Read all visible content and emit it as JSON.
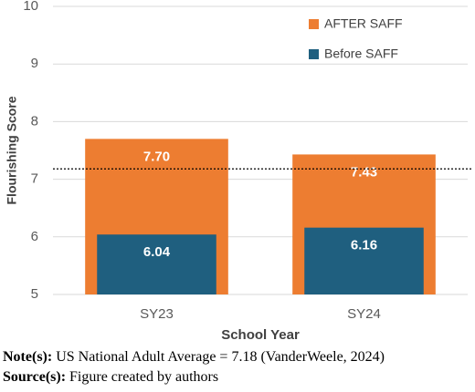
{
  "chart_data": {
    "type": "bar",
    "categories": [
      "SY23",
      "SY24"
    ],
    "series": [
      {
        "name": "AFTER SAFF",
        "color": "#ed7d31",
        "values": [
          7.7,
          7.43
        ],
        "value_labels": [
          "7.70",
          "7.43"
        ]
      },
      {
        "name": "Before SAFF",
        "color": "#1f5f7f",
        "values": [
          6.04,
          6.16
        ]
      }
    ],
    "x_label": "School Year",
    "y_label": "Flourishing Score",
    "ylim": [
      5,
      10
    ],
    "yticks": [
      5,
      6,
      7,
      8,
      9,
      10
    ],
    "grid": true,
    "reference_line": 7.18
  },
  "notes": [
    {
      "label": "Note(s):",
      "text": "US National Adult Average = 7.18 (VanderWeele, 2024)"
    },
    {
      "label": "Source(s):",
      "text": "Figure created by authors"
    }
  ]
}
